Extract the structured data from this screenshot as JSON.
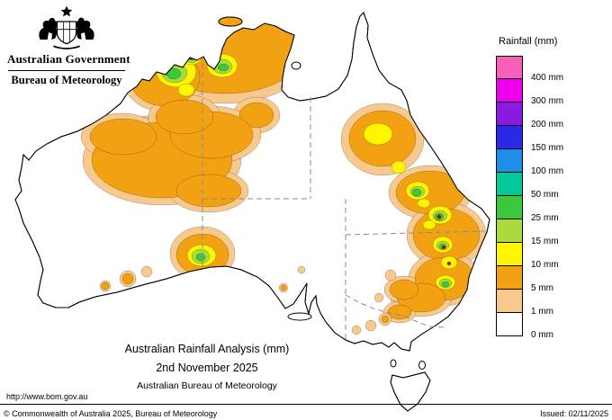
{
  "header": {
    "government": "Australian Government",
    "bureau": "Bureau of Meteorology"
  },
  "legend": {
    "title": "Rainfall (mm)",
    "entries": [
      {
        "level": "400",
        "label": "400 mm",
        "color": "#f85fb8"
      },
      {
        "level": "300",
        "label": "300 mm",
        "color": "#ee00ee"
      },
      {
        "level": "200",
        "label": "200 mm",
        "color": "#8a1ae0"
      },
      {
        "level": "150",
        "label": "150 mm",
        "color": "#2a2ae6"
      },
      {
        "level": "100",
        "label": "100 mm",
        "color": "#1e8fe6"
      },
      {
        "level": "50",
        "label": "50 mm",
        "color": "#00c896"
      },
      {
        "level": "25",
        "label": "25 mm",
        "color": "#3cc83c"
      },
      {
        "level": "15",
        "label": "15 mm",
        "color": "#a8dc3c"
      },
      {
        "level": "10",
        "label": "10 mm",
        "color": "#fff500"
      },
      {
        "level": "5",
        "label": "5 mm",
        "color": "#f2a113"
      },
      {
        "level": "1",
        "label": "1 mm",
        "color": "#f8c98c"
      },
      {
        "level": "0",
        "label": "0 mm",
        "color": "#ffffff"
      }
    ]
  },
  "caption": {
    "title": "Australian Rainfall Analysis (mm)",
    "date": "2nd November 2025",
    "organisation": "Australian Bureau of Meteorology"
  },
  "footer": {
    "url": "http://www.bom.gov.au",
    "copyright": "© Commonwealth of Australia 2025, Bureau of Meteorology",
    "issued": "Issued: 02/11/2025"
  },
  "map": {
    "heavy_spot_color": "#b40000"
  }
}
